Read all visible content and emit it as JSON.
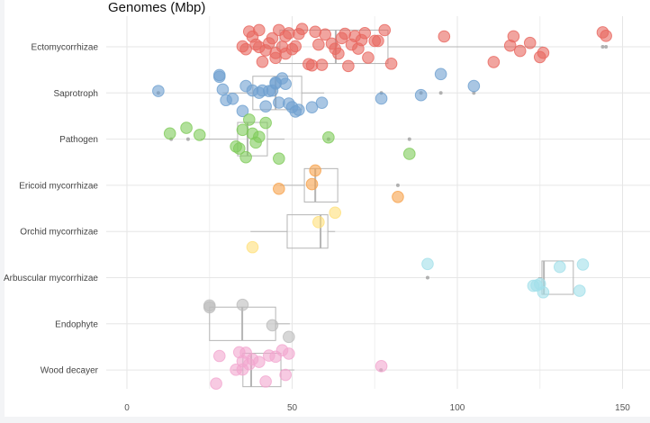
{
  "chart_data": {
    "type": "boxplot",
    "title": "Genomes (Mbp)",
    "xlabel": "",
    "ylabel": "",
    "xlim": [
      -5,
      157
    ],
    "x_ticks": [
      0,
      50,
      100,
      150
    ],
    "grid": true,
    "legend": "none",
    "categories": [
      "Ectomycorrhizae",
      "Saprotroph",
      "Pathogen",
      "Ericoid mycorrhizae",
      "Orchid mycorrhizae",
      "Arbuscular mycorrhizae",
      "Endophyte",
      "Wood decayer"
    ],
    "series": [
      {
        "category": "Ectomycorrhizae",
        "color": "#e8675f",
        "box": {
          "whisker_low": 35,
          "q1": 46.3,
          "median": 63.2,
          "q3": 79,
          "whisker_high": 126
        },
        "outliers": [
          144,
          145
        ],
        "points": [
          35,
          36,
          37,
          38,
          39,
          40,
          40,
          41,
          42,
          43,
          44,
          45,
          45,
          46,
          47,
          48,
          48,
          49,
          50,
          51,
          52,
          53,
          55,
          56,
          57,
          58,
          59,
          60,
          62,
          63,
          64,
          65,
          66,
          67,
          68,
          69,
          70,
          71,
          72,
          73,
          75,
          76,
          78,
          80,
          96,
          111,
          116,
          117,
          119,
          122,
          125,
          126,
          144,
          145
        ]
      },
      {
        "category": "Saprotroph",
        "color": "#6fa0d0",
        "box": {
          "whisker_low": 29,
          "q1": 38.1,
          "median": 45,
          "q3": 52.9,
          "whisker_high": 59.7
        },
        "outliers": [
          9.5,
          77,
          89,
          95,
          105
        ],
        "points": [
          9.5,
          28,
          28,
          29,
          30,
          32,
          35,
          36,
          38,
          40,
          41,
          42,
          43,
          44,
          45,
          45,
          46,
          47,
          48,
          49,
          50,
          51,
          52,
          56,
          59,
          77,
          89,
          95,
          105
        ]
      },
      {
        "category": "Pathogen",
        "color": "#7fcb5a",
        "box": {
          "whisker_low": 22.3,
          "q1": 33.5,
          "median": 36.5,
          "q3": 42.5,
          "whisker_high": 47.7
        },
        "outliers": [
          13.4,
          18.5,
          61,
          85.5
        ],
        "points": [
          13,
          18,
          22,
          33,
          34,
          35,
          36,
          37,
          38,
          39,
          40,
          42,
          46,
          61,
          85.5
        ]
      },
      {
        "category": "Ericoid mycorrhizae",
        "color": "#f6a14b",
        "box": {
          "whisker_low": 46.3,
          "q1": 53.7,
          "median": 57,
          "q3": 63.8,
          "whisker_high": 63.8
        },
        "outliers": [
          82
        ],
        "points": [
          46,
          56,
          57,
          82
        ]
      },
      {
        "category": "Orchid mycorrhizae",
        "color": "#ffe07a",
        "box": {
          "whisker_low": 37.4,
          "q1": 48.5,
          "median": 58.6,
          "q3": 60.8,
          "whisker_high": 63
        },
        "outliers": [],
        "points": [
          38,
          58,
          63
        ]
      },
      {
        "category": "Arbuscular mycorrhizae",
        "color": "#a2e0ea",
        "box": {
          "whisker_low": 124.5,
          "q1": 125.6,
          "median": 126.2,
          "q3": 135.1,
          "whisker_high": 135.1
        },
        "outliers": [
          91
        ],
        "points": [
          91,
          123,
          124,
          125,
          126,
          131,
          137,
          138
        ]
      },
      {
        "category": "Endophyte",
        "color": "#bdbdbd",
        "box": {
          "whisker_low": 25,
          "q1": 25,
          "median": 34.9,
          "q3": 45,
          "whisker_high": 49.3
        },
        "outliers": [],
        "points": [
          25,
          25,
          35,
          44,
          49
        ]
      },
      {
        "category": "Wood decayer",
        "color": "#f2a6cf",
        "box": {
          "whisker_low": 32,
          "q1": 35.1,
          "median": 37.6,
          "q3": 46.6,
          "whisker_high": 50.7
        },
        "outliers": [
          76.9
        ],
        "points": [
          27,
          28,
          33,
          34,
          35,
          35,
          36,
          37,
          38,
          40,
          42,
          43,
          45,
          47,
          48,
          49,
          77
        ]
      }
    ]
  }
}
